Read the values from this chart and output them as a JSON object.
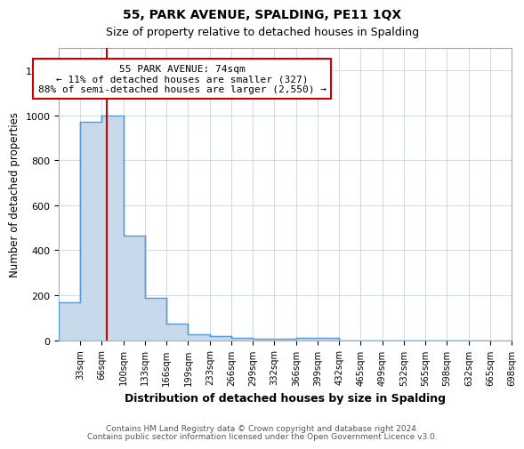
{
  "title1": "55, PARK AVENUE, SPALDING, PE11 1QX",
  "title2": "Size of property relative to detached houses in Spalding",
  "xlabel": "Distribution of detached houses by size in Spalding",
  "ylabel": "Number of detached properties",
  "categories": [
    "33sqm",
    "66sqm",
    "100sqm",
    "133sqm",
    "166sqm",
    "199sqm",
    "233sqm",
    "266sqm",
    "299sqm",
    "332sqm",
    "366sqm",
    "399sqm",
    "432sqm",
    "465sqm",
    "499sqm",
    "532sqm",
    "565sqm",
    "598sqm",
    "632sqm",
    "665sqm",
    "698sqm"
  ],
  "values": [
    170,
    970,
    1000,
    465,
    190,
    75,
    25,
    18,
    12,
    8,
    6,
    10,
    10,
    0,
    0,
    0,
    0,
    0,
    0,
    0,
    0
  ],
  "bar_color": "#c9d9ec",
  "bar_edge_color": "#5b9bd5",
  "property_size": 74,
  "property_label": "55 PARK AVENUE: 74sqm",
  "annotation_line1": "← 11% of detached houses are smaller (327)",
  "annotation_line2": "88% of semi-detached houses are larger (2,550) →",
  "vline_color": "#cc0000",
  "annotation_box_color": "#cc0000",
  "annotation_bg": "#ffffff",
  "ylim": [
    0,
    1300
  ],
  "yticks": [
    0,
    200,
    400,
    600,
    800,
    1000,
    1200
  ],
  "footnote1": "Contains HM Land Registry data © Crown copyright and database right 2024.",
  "footnote2": "Contains public sector information licensed under the Open Government Licence v3.0.",
  "bin_edges": [
    0,
    33,
    66,
    100,
    133,
    166,
    199,
    233,
    266,
    299,
    332,
    366,
    399,
    432,
    465,
    499,
    532,
    565,
    598,
    632,
    665,
    698
  ]
}
